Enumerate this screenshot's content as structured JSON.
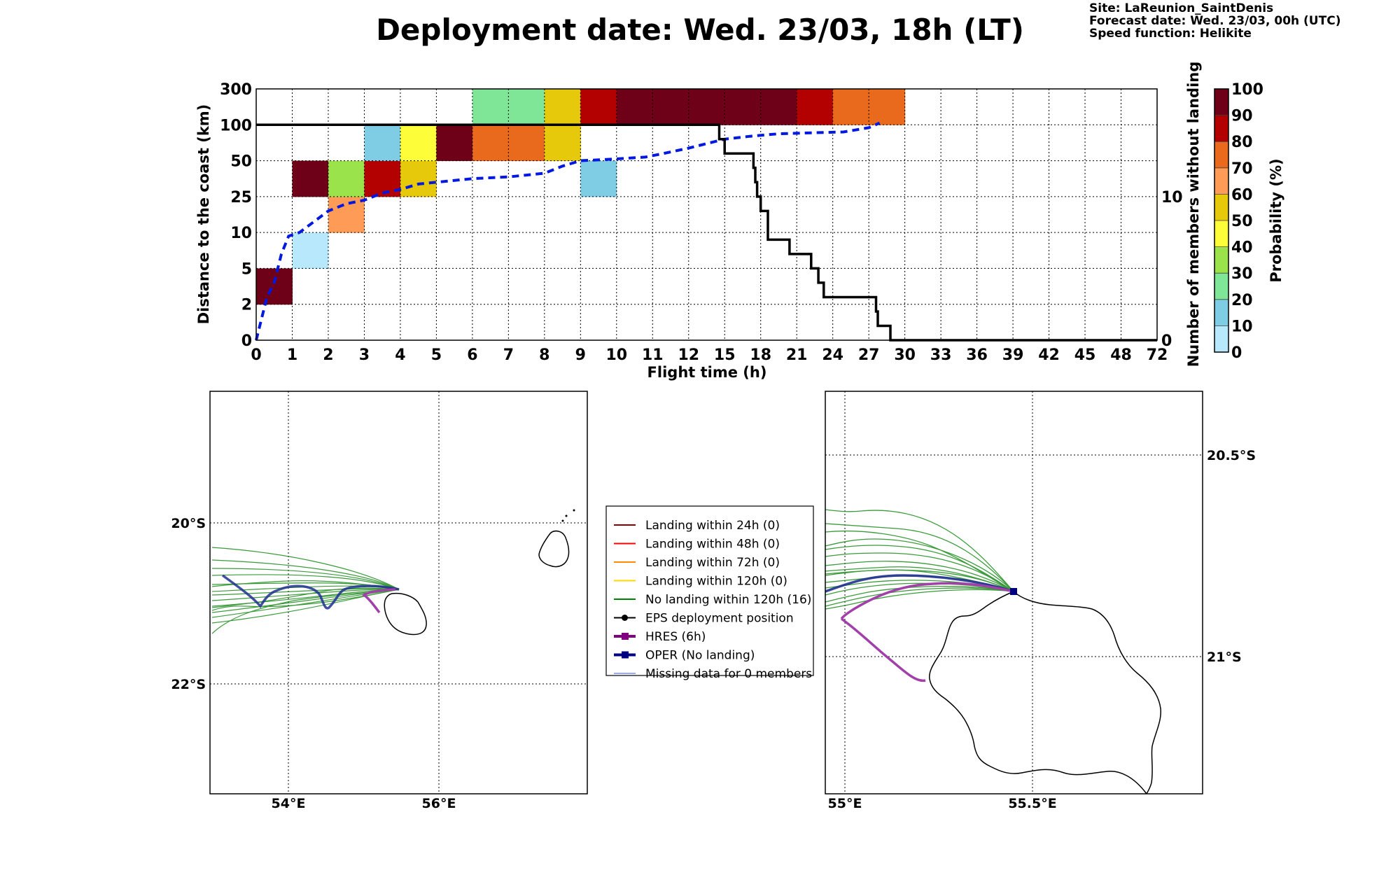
{
  "title": "Deployment date: Wed. 23/03, 18h (LT)",
  "info": {
    "site": "Site: LaReunion_SaintDenis",
    "forecast": "Forecast date: Wed. 23/03, 00h (UTC)",
    "speed": "Speed function: Helikite"
  },
  "chart_data": [
    {
      "type": "heatmap",
      "xlabel": "Flight time (h)",
      "ylabel": "Distance to the coast (km)",
      "y2label": "Number of members without landing",
      "x_ticks": [
        "0",
        "1",
        "2",
        "3",
        "4",
        "5",
        "6",
        "7",
        "8",
        "9",
        "10",
        "11",
        "12",
        "15",
        "18",
        "21",
        "24",
        "27",
        "30",
        "33",
        "36",
        "39",
        "42",
        "45",
        "48",
        "72"
      ],
      "y_ticks": [
        "0",
        "2",
        "5",
        "10",
        "25",
        "50",
        "100",
        "300"
      ],
      "y2_ticks": [
        "0",
        "10"
      ],
      "y2_range": [
        0,
        17.5
      ],
      "grid": true,
      "colorbar": {
        "label": "Probability (%)",
        "ticks": [
          "0",
          "10",
          "20",
          "30",
          "40",
          "50",
          "60",
          "70",
          "80",
          "90",
          "100"
        ],
        "colors": [
          "#b8e8fc",
          "#7ecde5",
          "#7fe597",
          "#9ae34b",
          "#fdfd3a",
          "#e6c90a",
          "#fd9b57",
          "#e96a1d",
          "#b30000",
          "#6e0117"
        ]
      },
      "cells": [
        {
          "x": 0,
          "y": 1,
          "p": 95
        },
        {
          "x": 1,
          "y": 2,
          "p": 5
        },
        {
          "x": 1,
          "y": 4,
          "p": 95
        },
        {
          "x": 2,
          "y": 3,
          "p": 65
        },
        {
          "x": 2,
          "y": 4,
          "p": 35
        },
        {
          "x": 3,
          "y": 4,
          "p": 85
        },
        {
          "x": 3,
          "y": 5,
          "p": 15
        },
        {
          "x": 4,
          "y": 4,
          "p": 55
        },
        {
          "x": 4,
          "y": 5,
          "p": 45
        },
        {
          "x": 5,
          "y": 5,
          "p": 95
        },
        {
          "x": 6,
          "y": 5,
          "p": 75
        },
        {
          "x": 6,
          "y": 6,
          "p": 25
        },
        {
          "x": 7,
          "y": 5,
          "p": 75
        },
        {
          "x": 7,
          "y": 6,
          "p": 25
        },
        {
          "x": 8,
          "y": 5,
          "p": 55
        },
        {
          "x": 8,
          "y": 6,
          "p": 55
        },
        {
          "x": 9,
          "y": 4,
          "p": 15
        },
        {
          "x": 9,
          "y": 6,
          "p": 85
        },
        {
          "x": 10,
          "y": 6,
          "p": 95
        },
        {
          "x": 11,
          "y": 6,
          "p": 95
        },
        {
          "x": 12,
          "y": 6,
          "p": 95
        },
        {
          "x": 13,
          "y": 6,
          "p": 95
        },
        {
          "x": 14,
          "y": 6,
          "p": 95
        },
        {
          "x": 15,
          "y": 6,
          "p": 85
        },
        {
          "x": 16,
          "y": 6,
          "p": 75
        },
        {
          "x": 17,
          "y": 6,
          "p": 75
        }
      ],
      "median_distance": {
        "style": "blue-dashed",
        "points": [
          [
            0,
            0
          ],
          [
            0.1,
            0.4
          ],
          [
            0.3,
            1.2
          ],
          [
            0.5,
            1.6
          ],
          [
            0.7,
            2.4
          ],
          [
            0.9,
            2.9
          ],
          [
            1.2,
            3.0
          ],
          [
            1.6,
            3.3
          ],
          [
            2,
            3.6
          ],
          [
            2.5,
            3.8
          ],
          [
            3,
            3.9
          ],
          [
            3.5,
            4.1
          ],
          [
            4,
            4.2
          ],
          [
            4.5,
            4.35
          ],
          [
            5,
            4.4
          ],
          [
            5.5,
            4.45
          ],
          [
            6,
            4.5
          ],
          [
            7,
            4.55
          ],
          [
            8,
            4.65
          ],
          [
            8.5,
            4.85
          ],
          [
            9,
            5.0
          ],
          [
            10,
            5.05
          ],
          [
            10.8,
            5.1
          ],
          [
            11.3,
            5.2
          ],
          [
            12,
            5.35
          ],
          [
            12.6,
            5.5
          ],
          [
            13,
            5.6
          ],
          [
            13.7,
            5.68
          ],
          [
            14.5,
            5.75
          ],
          [
            15.5,
            5.78
          ],
          [
            16.3,
            5.8
          ],
          [
            17,
            5.92
          ],
          [
            17.3,
            6.05
          ]
        ]
      },
      "members_without_landing": {
        "style": "black-step",
        "points": [
          [
            0,
            15
          ],
          [
            12.85,
            15
          ],
          [
            12.85,
            14
          ],
          [
            13,
            14
          ],
          [
            13,
            13
          ],
          [
            13.8,
            13
          ],
          [
            13.8,
            12
          ],
          [
            13.85,
            12
          ],
          [
            13.85,
            11
          ],
          [
            13.9,
            11
          ],
          [
            13.9,
            10
          ],
          [
            14,
            10
          ],
          [
            14,
            9
          ],
          [
            14.2,
            9
          ],
          [
            14.2,
            7
          ],
          [
            14.8,
            7
          ],
          [
            14.8,
            6
          ],
          [
            15.4,
            6
          ],
          [
            15.4,
            5
          ],
          [
            15.6,
            5
          ],
          [
            15.6,
            4
          ],
          [
            15.75,
            4
          ],
          [
            15.75,
            3
          ],
          [
            17.2,
            3
          ],
          [
            17.2,
            2
          ],
          [
            17.25,
            2
          ],
          [
            17.25,
            1
          ],
          [
            17.6,
            1
          ],
          [
            17.6,
            0
          ],
          [
            25,
            0
          ]
        ]
      }
    }
  ],
  "map_left": {
    "lon_labels": [
      "54°E",
      "56°E"
    ],
    "lat_labels": [
      "20°S",
      "22°S"
    ]
  },
  "map_right": {
    "lon_labels": [
      "55°E",
      "55.5°E"
    ],
    "lat_labels": [
      "20.5°S",
      "21°S"
    ]
  },
  "legend": {
    "items": [
      {
        "label": "Landing within 24h (0)",
        "color": "#8b0000",
        "marker": "none",
        "width": 2
      },
      {
        "label": "Landing within 48h (0)",
        "color": "#ff0000",
        "marker": "none",
        "width": 2
      },
      {
        "label": "Landing within 72h (0)",
        "color": "#ff8c00",
        "marker": "none",
        "width": 2
      },
      {
        "label": "Landing within 120h (0)",
        "color": "#ffd700",
        "marker": "none",
        "width": 2
      },
      {
        "label": "No landing within 120h (16)",
        "color": "#008000",
        "marker": "none",
        "width": 2
      },
      {
        "label": "EPS deployment position",
        "color": "#000000",
        "marker": "circle",
        "width": 2
      },
      {
        "label": "HRES (6h)",
        "color": "#800080",
        "marker": "square",
        "width": 4
      },
      {
        "label": "OPER (No landing)",
        "color": "#000080",
        "marker": "square",
        "width": 4
      },
      {
        "label": "Missing data for 0 members",
        "color": "#3050ff",
        "marker": "none",
        "width": 1
      }
    ]
  }
}
